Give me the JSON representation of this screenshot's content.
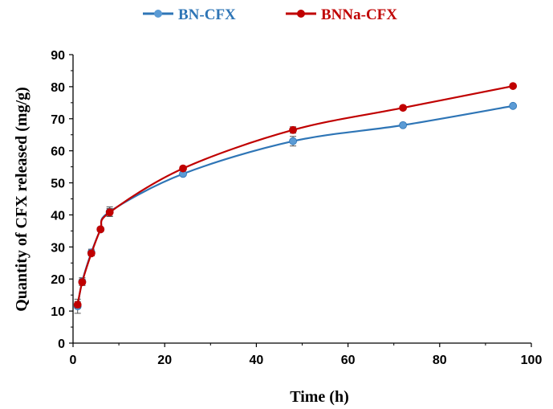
{
  "chart_data": {
    "type": "line",
    "title": "",
    "xlabel": "Time (h)",
    "ylabel": "Quantity of CFX released (mg/g)",
    "xlim": [
      0,
      100
    ],
    "ylim": [
      0,
      90
    ],
    "xticks": [
      "0",
      "20",
      "40",
      "60",
      "80",
      "100"
    ],
    "yticks": [
      "0",
      "10",
      "20",
      "30",
      "40",
      "50",
      "60",
      "70",
      "80",
      "90"
    ],
    "grid": false,
    "legend_position": "top-center",
    "series": [
      {
        "name": "BN-CFX",
        "color": "#2e75b6",
        "marker_color": "#5b9bd5",
        "x": [
          1,
          2,
          4,
          6,
          8,
          24,
          48,
          72,
          96
        ],
        "y": [
          11.5,
          19.2,
          28.3,
          35.5,
          41.0,
          52.8,
          63.0,
          68.0,
          74.0
        ],
        "error": [
          2.2,
          1.2,
          1.0,
          0.6,
          1.5,
          0.5,
          1.5,
          0.6,
          0.5
        ]
      },
      {
        "name": "BNNa-CFX",
        "color": "#c00000",
        "marker_color": "#c00000",
        "x": [
          1,
          2,
          4,
          6,
          8,
          24,
          48,
          72,
          96
        ],
        "y": [
          12.0,
          19.0,
          28.0,
          35.5,
          40.8,
          54.5,
          66.5,
          73.4,
          80.2
        ],
        "error": [
          1.0,
          1.0,
          0.8,
          0.5,
          1.2,
          0.6,
          1.0,
          0.6,
          0.5
        ]
      }
    ]
  }
}
